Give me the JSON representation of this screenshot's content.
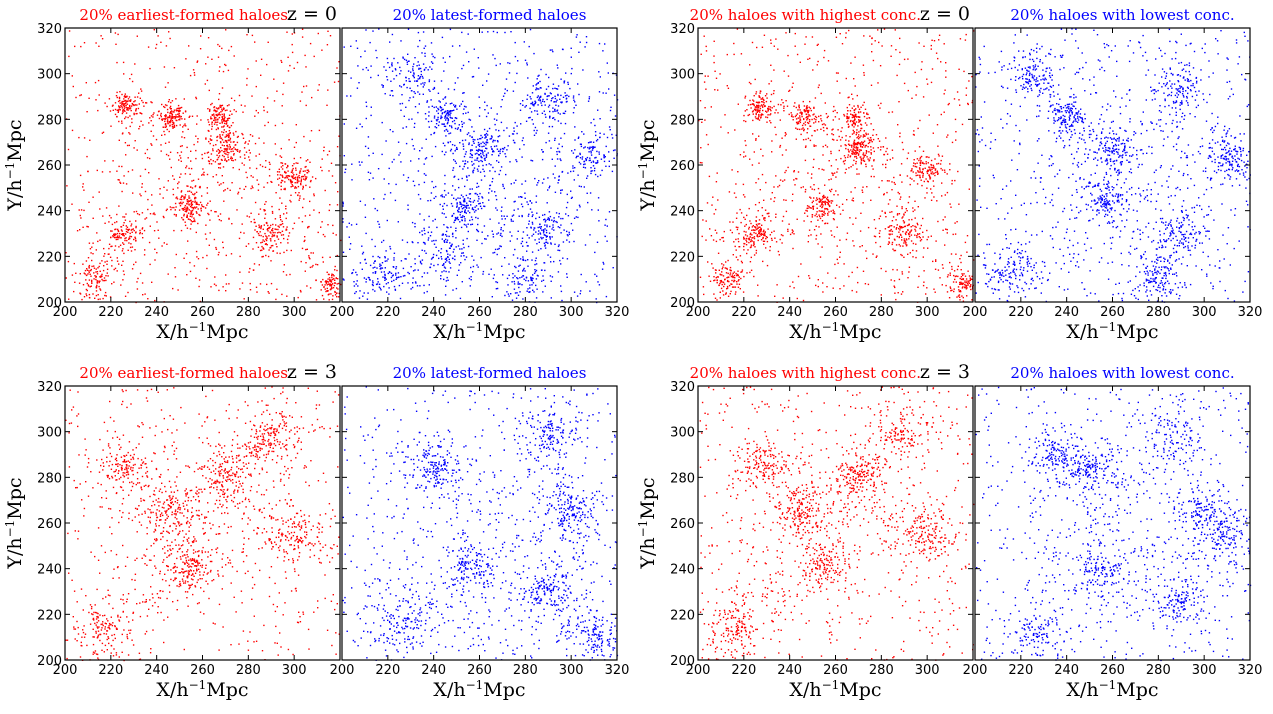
{
  "figure": {
    "colors": {
      "red_series": "#ff0000",
      "blue_series": "#0000ff",
      "axes": "#000000",
      "background": "#ffffff"
    }
  },
  "chart_data": [
    {
      "type": "scatter",
      "row": 0,
      "group": 0,
      "side": 0,
      "title": "20% earliest-formed haloes",
      "z_label": "z = 0",
      "xlabel": "X/h⁻¹Mpc",
      "ylabel": "Y/h⁻¹Mpc",
      "xlim": [
        200,
        320
      ],
      "ylim": [
        200,
        320
      ],
      "x_ticks": [
        "200",
        "220",
        "240",
        "260",
        "280",
        "300"
      ],
      "y_ticks": [
        "200",
        "220",
        "240",
        "260",
        "280",
        "300",
        "320"
      ],
      "series": [
        {
          "name": "20% earliest-formed haloes",
          "color": "#ff0000",
          "points": 2000,
          "seed": 11
        }
      ],
      "clusters": [
        [
          212,
          210,
          4
        ],
        [
          254,
          242,
          3
        ],
        [
          226,
          286,
          3
        ],
        [
          246,
          282,
          3
        ],
        [
          268,
          281,
          3
        ],
        [
          300,
          255,
          4
        ],
        [
          316,
          208,
          3
        ],
        [
          270,
          268,
          4
        ],
        [
          225,
          230,
          4
        ],
        [
          290,
          230,
          4
        ]
      ]
    },
    {
      "type": "scatter",
      "row": 0,
      "group": 0,
      "side": 1,
      "title": "20% latest-formed haloes",
      "xlabel": "X/h⁻¹Mpc",
      "xlim": [
        200,
        320
      ],
      "ylim": [
        200,
        320
      ],
      "x_ticks": [
        "200",
        "220",
        "240",
        "260",
        "280",
        "300",
        "320"
      ],
      "series": [
        {
          "name": "20% latest-formed haloes",
          "color": "#0000ff",
          "points": 2000,
          "seed": 12
        }
      ],
      "clusters": [
        [
          215,
          212,
          6
        ],
        [
          254,
          242,
          4
        ],
        [
          246,
          282,
          4
        ],
        [
          260,
          268,
          5
        ],
        [
          290,
          290,
          6
        ],
        [
          290,
          232,
          5
        ],
        [
          310,
          265,
          5
        ],
        [
          230,
          300,
          6
        ],
        [
          280,
          210,
          6
        ],
        [
          245,
          220,
          6
        ]
      ]
    },
    {
      "type": "scatter",
      "row": 0,
      "group": 1,
      "side": 0,
      "title": "20% haloes with highest conc.",
      "z_label": "z = 0",
      "xlabel": "X/h⁻¹Mpc",
      "ylabel": "Y/h⁻¹Mpc",
      "xlim": [
        200,
        320
      ],
      "ylim": [
        200,
        320
      ],
      "x_ticks": [
        "200",
        "220",
        "240",
        "260",
        "280",
        "300"
      ],
      "y_ticks": [
        "200",
        "220",
        "240",
        "260",
        "280",
        "300",
        "320"
      ],
      "series": [
        {
          "name": "20% haloes with highest conc.",
          "color": "#ff0000",
          "points": 2000,
          "seed": 13
        }
      ],
      "clusters": [
        [
          212,
          210,
          4
        ],
        [
          254,
          242,
          3
        ],
        [
          226,
          286,
          3
        ],
        [
          246,
          282,
          3
        ],
        [
          268,
          281,
          3
        ],
        [
          300,
          258,
          4
        ],
        [
          316,
          208,
          3
        ],
        [
          270,
          268,
          4
        ],
        [
          225,
          230,
          4
        ],
        [
          290,
          230,
          4
        ]
      ]
    },
    {
      "type": "scatter",
      "row": 0,
      "group": 1,
      "side": 1,
      "title": "20% haloes with lowest conc.",
      "xlabel": "X/h⁻¹Mpc",
      "xlim": [
        200,
        320
      ],
      "ylim": [
        200,
        320
      ],
      "x_ticks": [
        "200",
        "220",
        "240",
        "260",
        "280",
        "300",
        "320"
      ],
      "series": [
        {
          "name": "20% haloes with lowest conc.",
          "color": "#0000ff",
          "points": 2000,
          "seed": 14
        }
      ],
      "clusters": [
        [
          215,
          212,
          6
        ],
        [
          256,
          244,
          4
        ],
        [
          240,
          282,
          4
        ],
        [
          290,
          295,
          6
        ],
        [
          312,
          262,
          5
        ],
        [
          290,
          230,
          5
        ],
        [
          260,
          268,
          5
        ],
        [
          225,
          300,
          6
        ],
        [
          280,
          210,
          6
        ]
      ]
    },
    {
      "type": "scatter",
      "row": 1,
      "group": 0,
      "side": 0,
      "title": "20% earliest-formed haloes",
      "z_label": "z = 3",
      "xlabel": "X/h⁻¹Mpc",
      "ylabel": "Y/h⁻¹Mpc",
      "xlim": [
        200,
        320
      ],
      "ylim": [
        200,
        320
      ],
      "x_ticks": [
        "200",
        "220",
        "240",
        "260",
        "280",
        "300"
      ],
      "y_ticks": [
        "200",
        "220",
        "240",
        "260",
        "280",
        "300",
        "320"
      ],
      "series": [
        {
          "name": "20% earliest-formed haloes",
          "color": "#ff0000",
          "points": 1800,
          "seed": 21
        }
      ],
      "clusters": [
        [
          226,
          286,
          6
        ],
        [
          254,
          240,
          6
        ],
        [
          270,
          281,
          6
        ],
        [
          300,
          255,
          7
        ],
        [
          215,
          212,
          7
        ],
        [
          290,
          300,
          7
        ],
        [
          245,
          265,
          7
        ]
      ]
    },
    {
      "type": "scatter",
      "row": 1,
      "group": 0,
      "side": 1,
      "title": "20% latest-formed haloes",
      "xlabel": "X/h⁻¹Mpc",
      "xlim": [
        200,
        320
      ],
      "ylim": [
        200,
        320
      ],
      "x_ticks": [
        "200",
        "220",
        "240",
        "260",
        "280",
        "300",
        "320"
      ],
      "series": [
        {
          "name": "20% latest-formed haloes",
          "color": "#0000ff",
          "points": 1800,
          "seed": 22
        }
      ],
      "clusters": [
        [
          254,
          240,
          6
        ],
        [
          240,
          285,
          7
        ],
        [
          290,
          300,
          7
        ],
        [
          300,
          265,
          7
        ],
        [
          290,
          230,
          7
        ],
        [
          225,
          215,
          7
        ],
        [
          310,
          210,
          7
        ]
      ]
    },
    {
      "type": "scatter",
      "row": 1,
      "group": 1,
      "side": 0,
      "title": "20% haloes with highest conc.",
      "z_label": "z = 3",
      "xlabel": "X/h⁻¹Mpc",
      "ylabel": "Y/h⁻¹Mpc",
      "xlim": [
        200,
        320
      ],
      "ylim": [
        200,
        320
      ],
      "x_ticks": [
        "200",
        "220",
        "240",
        "260",
        "280",
        "300"
      ],
      "y_ticks": [
        "200",
        "220",
        "240",
        "260",
        "280",
        "300",
        "320"
      ],
      "series": [
        {
          "name": "20% haloes with highest conc.",
          "color": "#ff0000",
          "points": 1800,
          "seed": 23
        }
      ],
      "clusters": [
        [
          226,
          286,
          6
        ],
        [
          254,
          240,
          6
        ],
        [
          270,
          281,
          6
        ],
        [
          300,
          255,
          7
        ],
        [
          215,
          212,
          7
        ],
        [
          290,
          300,
          7
        ],
        [
          245,
          265,
          7
        ]
      ]
    },
    {
      "type": "scatter",
      "row": 1,
      "group": 1,
      "side": 1,
      "title": "20% haloes with lowest conc.",
      "xlabel": "X/h⁻¹Mpc",
      "xlim": [
        200,
        320
      ],
      "ylim": [
        200,
        320
      ],
      "x_ticks": [
        "200",
        "220",
        "240",
        "260",
        "280",
        "300",
        "320"
      ],
      "series": [
        {
          "name": "20% haloes with lowest conc.",
          "color": "#0000ff",
          "points": 1800,
          "seed": 24
        }
      ],
      "clusters": [
        [
          235,
          290,
          6
        ],
        [
          250,
          285,
          5
        ],
        [
          254,
          240,
          6
        ],
        [
          300,
          265,
          6
        ],
        [
          290,
          225,
          6
        ],
        [
          225,
          210,
          7
        ],
        [
          310,
          255,
          6
        ],
        [
          285,
          300,
          7
        ]
      ]
    }
  ]
}
